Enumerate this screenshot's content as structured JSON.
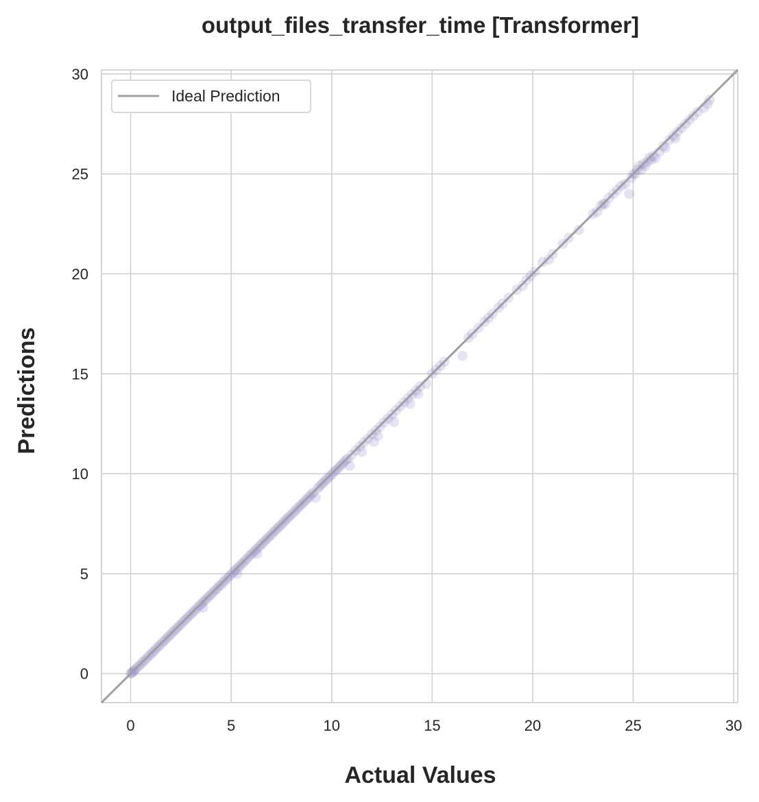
{
  "chart_data": {
    "type": "scatter",
    "title": "output_files_transfer_time [Transformer]",
    "xlabel": "Actual Values",
    "ylabel": "Predictions",
    "xlim": [
      -1.45,
      30.2
    ],
    "ylim": [
      -1.45,
      30.2
    ],
    "xticks": [
      0,
      5,
      10,
      15,
      20,
      25,
      30
    ],
    "yticks": [
      0,
      5,
      10,
      15,
      20,
      25,
      30
    ],
    "grid": true,
    "legend": {
      "position": "top-left",
      "entries": [
        "Ideal Prediction"
      ]
    },
    "colors": {
      "points": "#8b82c4",
      "ideal_line": "#a0a0a0",
      "grid": "#d0d0d0",
      "frame": "#cccccc"
    },
    "reference_line": {
      "name": "Ideal Prediction",
      "from": [
        -1.45,
        -1.45
      ],
      "to": [
        30.2,
        30.2
      ]
    },
    "points": [
      [
        0.0,
        0.0
      ],
      [
        0.05,
        0.02
      ],
      [
        0.1,
        0.08
      ],
      [
        0.15,
        0.12
      ],
      [
        0.2,
        0.18
      ],
      [
        0.3,
        0.28
      ],
      [
        0.4,
        0.38
      ],
      [
        0.5,
        0.45
      ],
      [
        0.6,
        0.58
      ],
      [
        0.7,
        0.66
      ],
      [
        0.8,
        0.76
      ],
      [
        0.9,
        0.88
      ],
      [
        1.0,
        0.95
      ],
      [
        1.1,
        1.08
      ],
      [
        1.2,
        1.16
      ],
      [
        1.3,
        1.27
      ],
      [
        1.4,
        1.38
      ],
      [
        1.5,
        1.46
      ],
      [
        1.6,
        1.58
      ],
      [
        1.7,
        1.66
      ],
      [
        1.8,
        1.77
      ],
      [
        1.9,
        1.87
      ],
      [
        2.0,
        1.96
      ],
      [
        2.1,
        2.08
      ],
      [
        2.2,
        2.17
      ],
      [
        2.3,
        2.27
      ],
      [
        2.4,
        2.38
      ],
      [
        2.5,
        2.46
      ],
      [
        2.6,
        2.58
      ],
      [
        2.7,
        2.68
      ],
      [
        2.8,
        2.76
      ],
      [
        2.9,
        2.88
      ],
      [
        3.0,
        2.97
      ],
      [
        3.1,
        3.08
      ],
      [
        3.2,
        3.16
      ],
      [
        3.3,
        3.28
      ],
      [
        3.4,
        3.38
      ],
      [
        3.5,
        3.47
      ],
      [
        3.6,
        3.58
      ],
      [
        3.7,
        3.67
      ],
      [
        3.8,
        3.76
      ],
      [
        3.9,
        3.88
      ],
      [
        4.0,
        3.95
      ],
      [
        4.1,
        4.07
      ],
      [
        4.2,
        4.17
      ],
      [
        4.3,
        4.26
      ],
      [
        4.4,
        4.38
      ],
      [
        4.5,
        4.44
      ],
      [
        4.6,
        4.57
      ],
      [
        4.7,
        4.66
      ],
      [
        4.8,
        4.76
      ],
      [
        4.9,
        4.86
      ],
      [
        5.0,
        4.96
      ],
      [
        5.1,
        5.07
      ],
      [
        5.2,
        5.16
      ],
      [
        5.3,
        5.27
      ],
      [
        5.4,
        5.36
      ],
      [
        5.5,
        5.46
      ],
      [
        5.6,
        5.55
      ],
      [
        5.7,
        5.66
      ],
      [
        5.8,
        5.75
      ],
      [
        5.9,
        5.87
      ],
      [
        6.0,
        5.97
      ],
      [
        6.1,
        6.06
      ],
      [
        6.2,
        6.17
      ],
      [
        6.3,
        6.26
      ],
      [
        6.4,
        6.37
      ],
      [
        6.5,
        6.46
      ],
      [
        6.6,
        6.56
      ],
      [
        6.7,
        6.66
      ],
      [
        6.8,
        6.76
      ],
      [
        6.9,
        6.86
      ],
      [
        7.0,
        6.95
      ],
      [
        7.1,
        7.07
      ],
      [
        7.2,
        7.16
      ],
      [
        7.3,
        7.26
      ],
      [
        7.4,
        7.37
      ],
      [
        7.5,
        7.45
      ],
      [
        7.6,
        7.56
      ],
      [
        7.7,
        7.67
      ],
      [
        7.8,
        7.76
      ],
      [
        7.9,
        7.86
      ],
      [
        8.0,
        7.96
      ],
      [
        8.1,
        8.06
      ],
      [
        8.2,
        8.16
      ],
      [
        8.3,
        8.27
      ],
      [
        8.4,
        8.36
      ],
      [
        8.5,
        8.46
      ],
      [
        8.6,
        8.56
      ],
      [
        8.7,
        8.67
      ],
      [
        8.8,
        8.76
      ],
      [
        8.9,
        8.86
      ],
      [
        9.0,
        8.97
      ],
      [
        9.1,
        9.06
      ],
      [
        9.3,
        9.26
      ],
      [
        9.4,
        9.36
      ],
      [
        9.5,
        9.47
      ],
      [
        9.6,
        9.56
      ],
      [
        9.7,
        9.67
      ],
      [
        9.8,
        9.76
      ],
      [
        9.9,
        9.86
      ],
      [
        10.0,
        9.96
      ],
      [
        10.1,
        10.07
      ],
      [
        10.2,
        10.16
      ],
      [
        10.3,
        10.26
      ],
      [
        10.4,
        10.37
      ],
      [
        10.5,
        10.46
      ],
      [
        10.6,
        10.56
      ],
      [
        10.7,
        10.67
      ],
      [
        10.8,
        10.75
      ],
      [
        11.0,
        10.95
      ],
      [
        11.2,
        11.16
      ],
      [
        11.4,
        11.37
      ],
      [
        11.6,
        11.56
      ],
      [
        11.8,
        11.75
      ],
      [
        12.0,
        11.97
      ],
      [
        12.2,
        12.17
      ],
      [
        12.4,
        12.35
      ],
      [
        12.6,
        12.57
      ],
      [
        12.8,
        12.76
      ],
      [
        13.0,
        12.96
      ],
      [
        13.2,
        13.17
      ],
      [
        13.4,
        13.37
      ],
      [
        13.6,
        13.57
      ],
      [
        13.8,
        13.77
      ],
      [
        14.0,
        13.97
      ],
      [
        14.2,
        14.16
      ],
      [
        14.4,
        14.37
      ],
      [
        10.9,
        10.4
      ],
      [
        11.5,
        11.1
      ],
      [
        12.3,
        11.9
      ],
      [
        13.1,
        12.6
      ],
      [
        13.9,
        13.5
      ],
      [
        14.3,
        14.0
      ],
      [
        14.7,
        14.5
      ],
      [
        15.0,
        15.0
      ],
      [
        15.2,
        15.2
      ],
      [
        15.4,
        15.4
      ],
      [
        15.6,
        15.6
      ],
      [
        16.5,
        15.9
      ],
      [
        16.8,
        16.8
      ],
      [
        17.0,
        17.0
      ],
      [
        17.3,
        17.3
      ],
      [
        17.6,
        17.6
      ],
      [
        17.8,
        17.8
      ],
      [
        18.0,
        18.0
      ],
      [
        18.3,
        18.3
      ],
      [
        18.5,
        18.5
      ],
      [
        18.8,
        18.8
      ],
      [
        19.2,
        19.2
      ],
      [
        19.5,
        19.4
      ],
      [
        19.7,
        19.7
      ],
      [
        19.9,
        19.9
      ],
      [
        20.1,
        20.1
      ],
      [
        20.5,
        20.6
      ],
      [
        20.8,
        20.7
      ],
      [
        21.0,
        21.0
      ],
      [
        21.5,
        21.5
      ],
      [
        21.8,
        21.8
      ],
      [
        22.3,
        22.2
      ],
      [
        23.0,
        23.0
      ],
      [
        23.2,
        23.1
      ],
      [
        23.4,
        23.4
      ],
      [
        23.5,
        23.5
      ],
      [
        23.6,
        23.5
      ],
      [
        23.8,
        23.8
      ],
      [
        24.0,
        24.0
      ],
      [
        24.2,
        24.2
      ],
      [
        24.4,
        24.4
      ],
      [
        24.6,
        24.5
      ],
      [
        24.8,
        24.0
      ],
      [
        24.9,
        24.8
      ],
      [
        25.0,
        25.0
      ],
      [
        25.1,
        25.0
      ],
      [
        25.2,
        25.2
      ],
      [
        25.3,
        25.4
      ],
      [
        25.4,
        25.2
      ],
      [
        25.5,
        25.5
      ],
      [
        25.6,
        25.4
      ],
      [
        25.7,
        25.6
      ],
      [
        25.8,
        25.8
      ],
      [
        25.9,
        25.7
      ],
      [
        26.0,
        25.9
      ],
      [
        26.1,
        25.8
      ],
      [
        26.3,
        26.1
      ],
      [
        26.5,
        26.4
      ],
      [
        26.8,
        26.7
      ],
      [
        27.0,
        26.9
      ],
      [
        27.2,
        27.1
      ],
      [
        27.4,
        27.3
      ],
      [
        27.6,
        27.5
      ],
      [
        27.8,
        27.7
      ],
      [
        28.0,
        27.9
      ],
      [
        28.2,
        28.1
      ],
      [
        28.5,
        28.3
      ],
      [
        28.7,
        28.5
      ],
      [
        28.8,
        28.7
      ],
      [
        27.1,
        26.8
      ],
      [
        26.6,
        26.3
      ],
      [
        12.1,
        11.6
      ],
      [
        9.2,
        8.8
      ],
      [
        6.3,
        6.0
      ],
      [
        5.3,
        5.0
      ],
      [
        3.6,
        3.3
      ]
    ]
  }
}
